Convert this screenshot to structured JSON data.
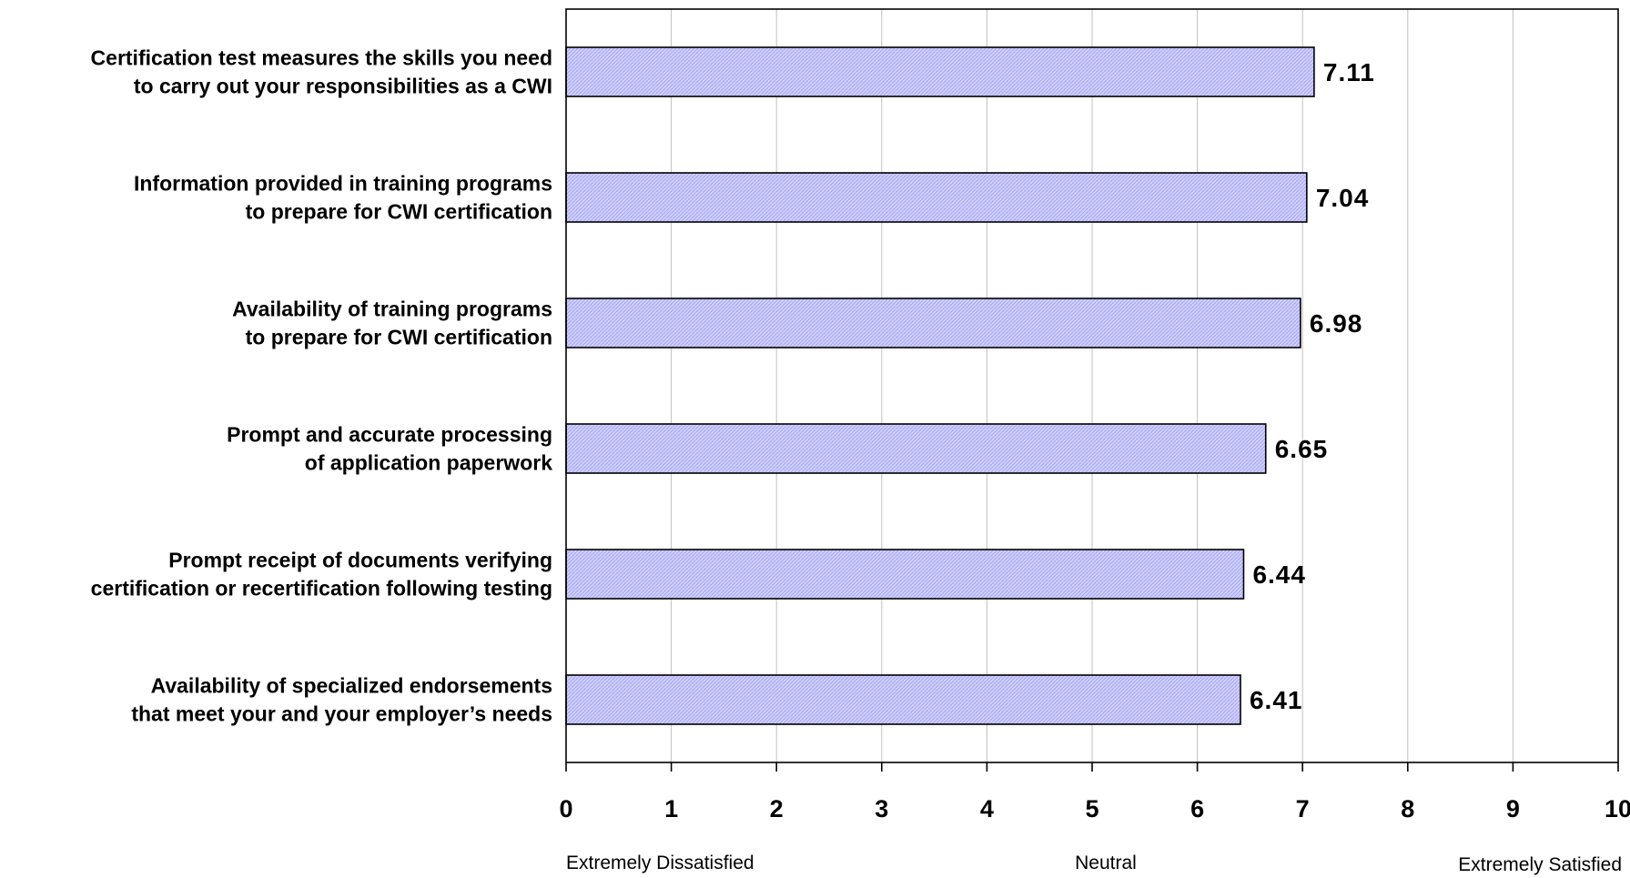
{
  "chart_data": {
    "type": "bar",
    "orientation": "horizontal",
    "categories": [
      [
        "Certification test measures the skills you need",
        "to carry out your responsibilities as a CWI"
      ],
      [
        "Information provided in training programs",
        "to prepare for CWI certification"
      ],
      [
        "Availability of training programs",
        "to prepare for CWI certification"
      ],
      [
        "Prompt and accurate processing",
        "of application paperwork"
      ],
      [
        "Prompt receipt of documents verifying",
        "certification or recertification following testing"
      ],
      [
        "Availability of specialized endorsements",
        "that meet your and your employer’s needs"
      ]
    ],
    "values": [
      7.11,
      7.04,
      6.98,
      6.65,
      6.44,
      6.41
    ],
    "data_labels": [
      "7.11",
      "7.04",
      "6.98",
      "6.65",
      "6.44",
      "6.41"
    ],
    "xlim": [
      0,
      10
    ],
    "ticks": [
      "0",
      "1",
      "2",
      "3",
      "4",
      "5",
      "6",
      "7",
      "8",
      "9",
      "10"
    ],
    "scale_anchors": {
      "low": "Extremely Dissatisfied",
      "mid": "Neutral",
      "high": "Extremely Satisfied"
    },
    "grid": "vertical",
    "bar_color": "#ccccff",
    "bar_border": "#000000",
    "title": "",
    "xlabel": "",
    "ylabel": ""
  }
}
